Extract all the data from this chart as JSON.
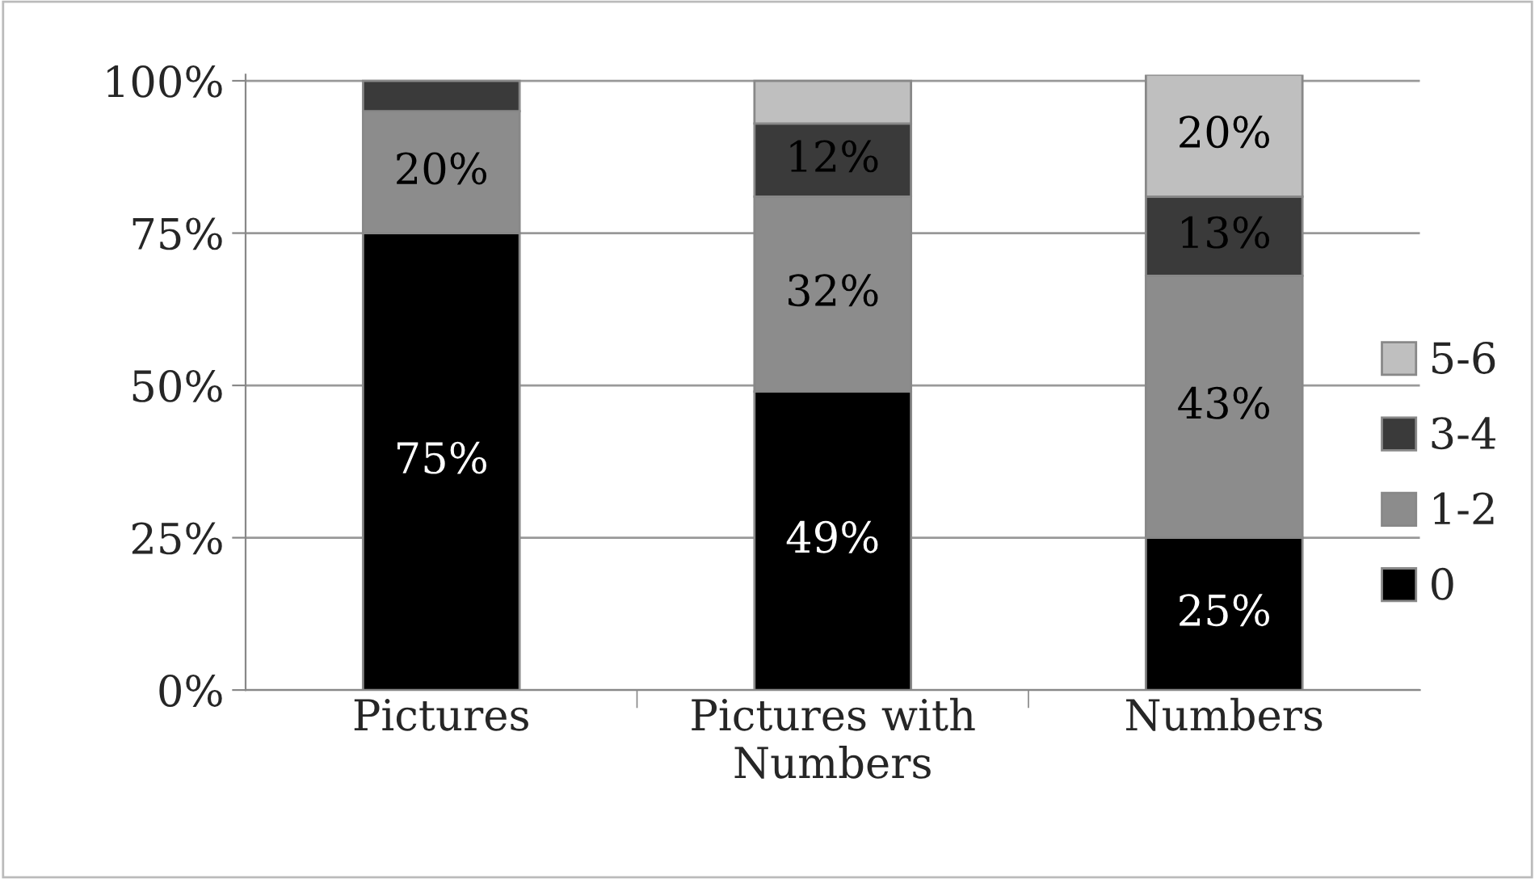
{
  "chart_data": {
    "type": "bar",
    "stacked": true,
    "categories": [
      "Pictures",
      "Pictures with\nNumbers",
      "Numbers"
    ],
    "series": [
      {
        "name": "0",
        "color": "#000000",
        "values": [
          75,
          49,
          25
        ],
        "value_labels": [
          "75%",
          "49%",
          "25%"
        ]
      },
      {
        "name": "1-2",
        "color": "#8c8c8c",
        "values": [
          20,
          32,
          43
        ],
        "value_labels": [
          "20%",
          "32%",
          "43%"
        ]
      },
      {
        "name": "3-4",
        "color": "#3a3a3a",
        "values": [
          5,
          12,
          13
        ],
        "value_labels": [
          null,
          "12%",
          "13%"
        ]
      },
      {
        "name": "5-6",
        "color": "#bfbfbf",
        "values": [
          null,
          7,
          20
        ],
        "value_labels": [
          null,
          null,
          "20%"
        ]
      }
    ],
    "ylim": [
      0,
      101
    ],
    "yticks": [
      {
        "value": 0,
        "label": "0%"
      },
      {
        "value": 25,
        "label": "25%"
      },
      {
        "value": 50,
        "label": "50%"
      },
      {
        "value": 75,
        "label": "75%"
      },
      {
        "value": 100,
        "label": "100%"
      }
    ],
    "grid": "y",
    "legend": "right"
  }
}
